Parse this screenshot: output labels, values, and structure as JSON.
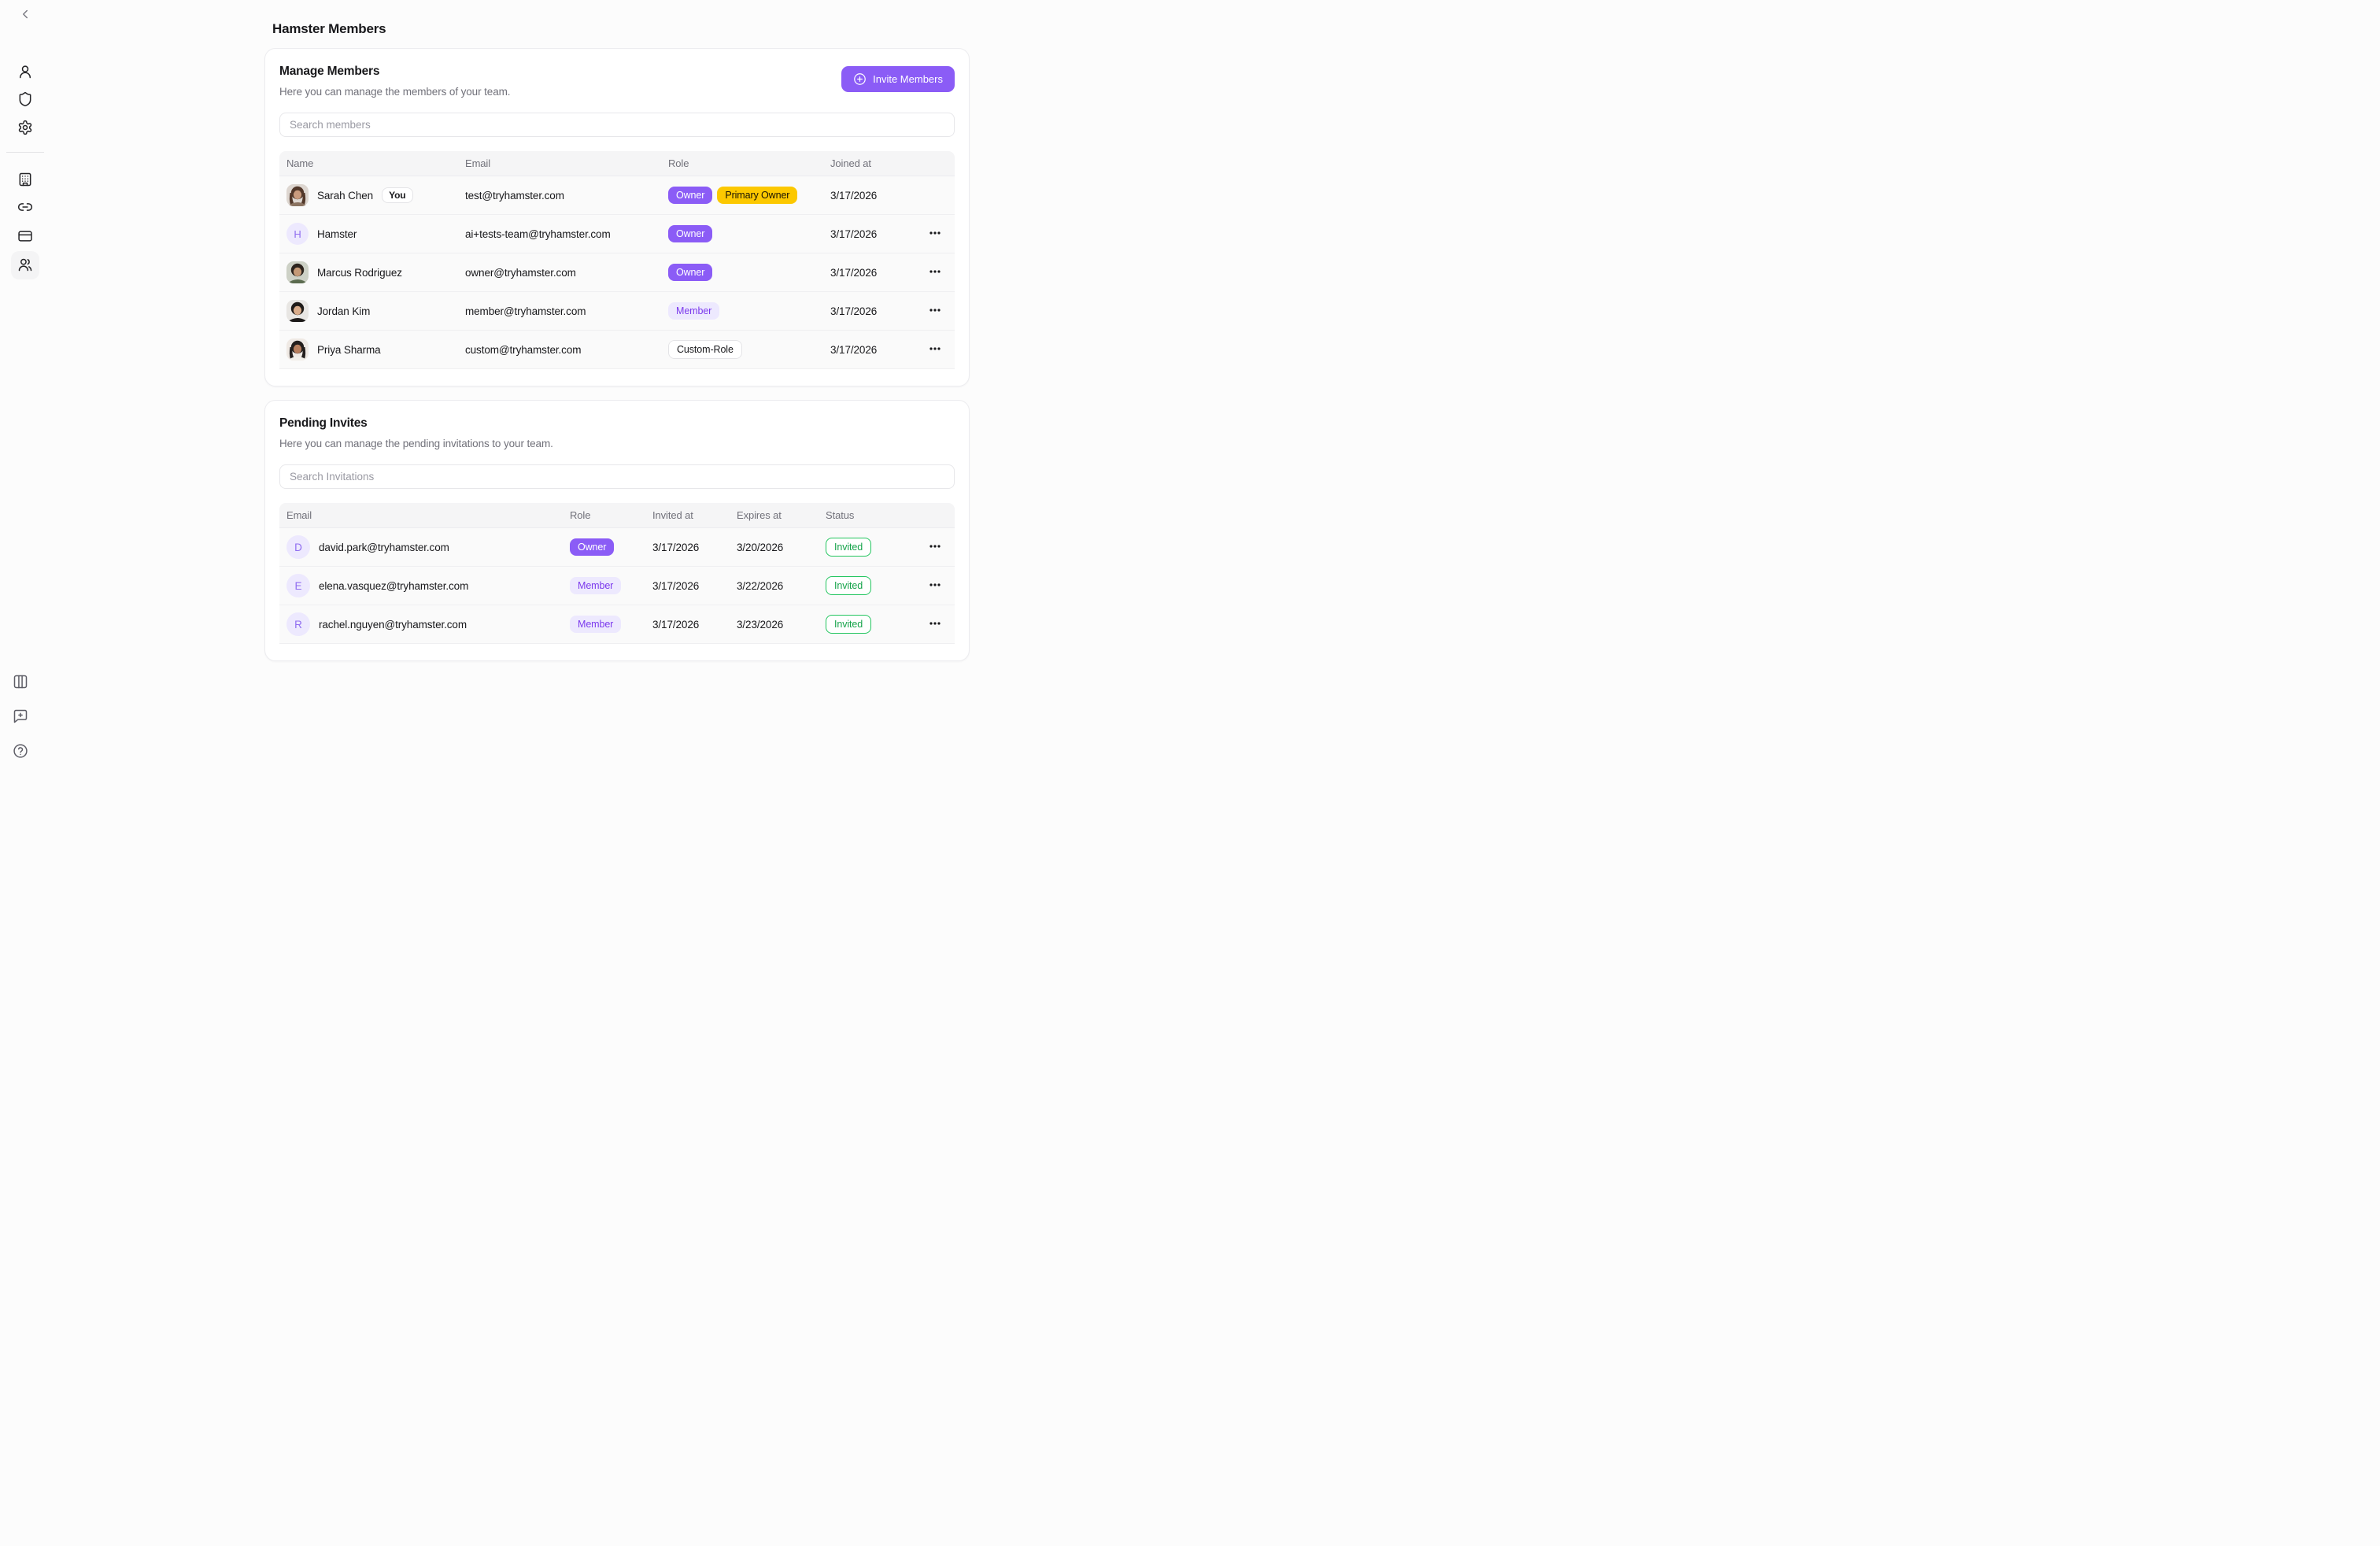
{
  "page": {
    "title": "Hamster Members"
  },
  "colors": {
    "accent_purple": "#8b5cf6",
    "soft_purple_bg": "#ede9fe",
    "soft_purple_text": "#7c3aed",
    "primary_owner_gold": "#fcc800",
    "invited_green": "#16a34a",
    "page_bg": "#fcfcfc",
    "card_bg": "#ffffff"
  },
  "icons": {
    "sidebar": [
      "chevron-left-icon",
      "user-icon",
      "shield-icon",
      "settings-icon",
      "building-icon",
      "link-icon",
      "credit-card-icon",
      "users-icon",
      "columns-icon",
      "message-square-plus-icon",
      "help-circle-icon"
    ],
    "invite_button": "circle-plus-icon",
    "row_menu": "ellipsis-icon"
  },
  "members_card": {
    "title": "Manage Members",
    "subtitle": "Here you can manage the members of your team.",
    "invite_button_label": "Invite Members",
    "search_placeholder": "Search members",
    "columns": [
      "Name",
      "Email",
      "Role",
      "Joined at"
    ],
    "rows": [
      {
        "name": "Sarah Chen",
        "you_badge": "You",
        "email": "test@tryhamster.com",
        "roles": [
          {
            "label": "Owner",
            "style": "solid-purple"
          },
          {
            "label": "Primary Owner",
            "style": "solid-gold"
          }
        ],
        "joined": "3/17/2026",
        "menu": false,
        "avatar": {
          "type": "photo",
          "bg": "#ddd6d0",
          "hair": "#52382a",
          "skin": "#c99b7e",
          "shirt": "#8a7260",
          "long_hair": true
        }
      },
      {
        "name": "Hamster",
        "email": "ai+tests-team@tryhamster.com",
        "roles": [
          {
            "label": "Owner",
            "style": "solid-purple"
          }
        ],
        "joined": "3/17/2026",
        "menu": true,
        "avatar": {
          "type": "letter",
          "letter": "H"
        }
      },
      {
        "name": "Marcus Rodriguez",
        "email": "owner@tryhamster.com",
        "roles": [
          {
            "label": "Owner",
            "style": "solid-purple"
          }
        ],
        "joined": "3/17/2026",
        "menu": true,
        "avatar": {
          "type": "photo",
          "bg": "#cdd1c6",
          "hair": "#2c241e",
          "skin": "#c59a77",
          "shirt": "#5b6b4f",
          "long_hair": false
        }
      },
      {
        "name": "Jordan Kim",
        "email": "member@tryhamster.com",
        "roles": [
          {
            "label": "Member",
            "style": "soft-purple"
          }
        ],
        "joined": "3/17/2026",
        "menu": true,
        "avatar": {
          "type": "photo",
          "bg": "#e8e6e3",
          "hair": "#1f1b18",
          "skin": "#d9ac8a",
          "shirt": "#1c1a19",
          "long_hair": false
        }
      },
      {
        "name": "Priya Sharma",
        "email": "custom@tryhamster.com",
        "roles": [
          {
            "label": "Custom-Role",
            "style": "outline"
          }
        ],
        "joined": "3/17/2026",
        "menu": true,
        "avatar": {
          "type": "photo",
          "bg": "#efe9e4",
          "hair": "#241f1d",
          "skin": "#b87f5e",
          "shirt": "#f2efe9",
          "long_hair": true
        }
      }
    ]
  },
  "invites_card": {
    "title": "Pending Invites",
    "subtitle": "Here you can manage the pending invitations to your team.",
    "search_placeholder": "Search Invitations",
    "columns": [
      "Email",
      "Role",
      "Invited at",
      "Expires at",
      "Status"
    ],
    "rows": [
      {
        "letter": "D",
        "email": "david.park@tryhamster.com",
        "role": {
          "label": "Owner",
          "style": "solid-purple"
        },
        "invited": "3/17/2026",
        "expires": "3/20/2026",
        "status": "Invited",
        "menu": true
      },
      {
        "letter": "E",
        "email": "elena.vasquez@tryhamster.com",
        "role": {
          "label": "Member",
          "style": "soft-purple"
        },
        "invited": "3/17/2026",
        "expires": "3/22/2026",
        "status": "Invited",
        "menu": true
      },
      {
        "letter": "R",
        "email": "rachel.nguyen@tryhamster.com",
        "role": {
          "label": "Member",
          "style": "soft-purple"
        },
        "invited": "3/17/2026",
        "expires": "3/23/2026",
        "status": "Invited",
        "menu": true
      }
    ]
  }
}
